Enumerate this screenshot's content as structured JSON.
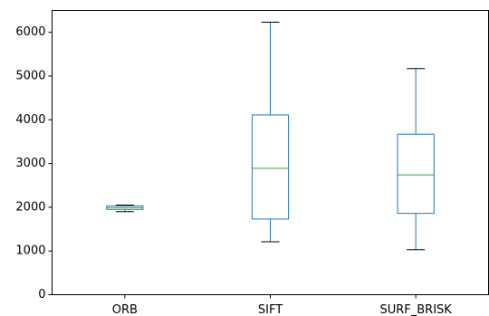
{
  "chart_data": {
    "type": "box",
    "title": "",
    "xlabel": "",
    "ylabel": "",
    "ylim": [
      0,
      6500
    ],
    "yticks": [
      0,
      1000,
      2000,
      3000,
      4000,
      5000,
      6000
    ],
    "grid": false,
    "categories": [
      "ORB",
      "SIFT",
      "SURF_BRISK"
    ],
    "boxes": [
      {
        "name": "ORB",
        "whisker_low": 1900,
        "q1": 1950,
        "median": 1990,
        "q3": 2030,
        "whisker_high": 2050
      },
      {
        "name": "SIFT",
        "whisker_low": 1210,
        "q1": 1730,
        "median": 2890,
        "q3": 4110,
        "whisker_high": 6230
      },
      {
        "name": "SURF_BRISK",
        "whisker_low": 1030,
        "q1": 1860,
        "median": 2740,
        "q3": 3670,
        "whisker_high": 5170
      }
    ],
    "colors": {
      "box": "#1f77b4",
      "median": "#2ca02c",
      "whisker_cap": "#000000",
      "axis": "#000000"
    }
  }
}
